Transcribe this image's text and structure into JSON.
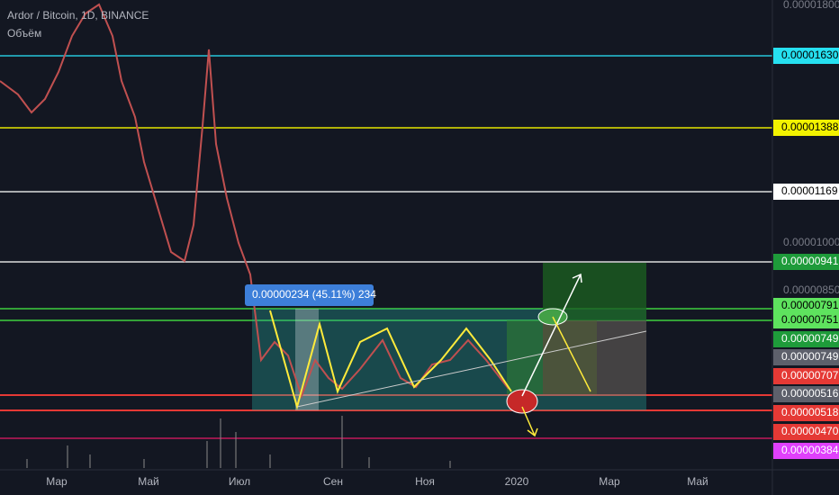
{
  "header": {
    "title": "Ardor / Bitcoin, 1D, BINANCE",
    "volume": "Объём"
  },
  "measure": "0.00000234 (45.11%) 234",
  "price_axis": [
    "0.00001800",
    "0.00001000",
    "0.00000850"
  ],
  "tags": [
    "0.00001630",
    "0.00001388",
    "0.00001169",
    "0.00000941",
    "0.00000791",
    "0.00000751",
    "0.00000749",
    "0.00000749",
    "0.00000707",
    "0.00000516",
    "0.00000518",
    "0.00000470",
    "0.00000384"
  ],
  "time_axis": [
    "Мар",
    "Май",
    "Июл",
    "Сен",
    "Ноя",
    "2020",
    "Мар",
    "Май"
  ]
}
